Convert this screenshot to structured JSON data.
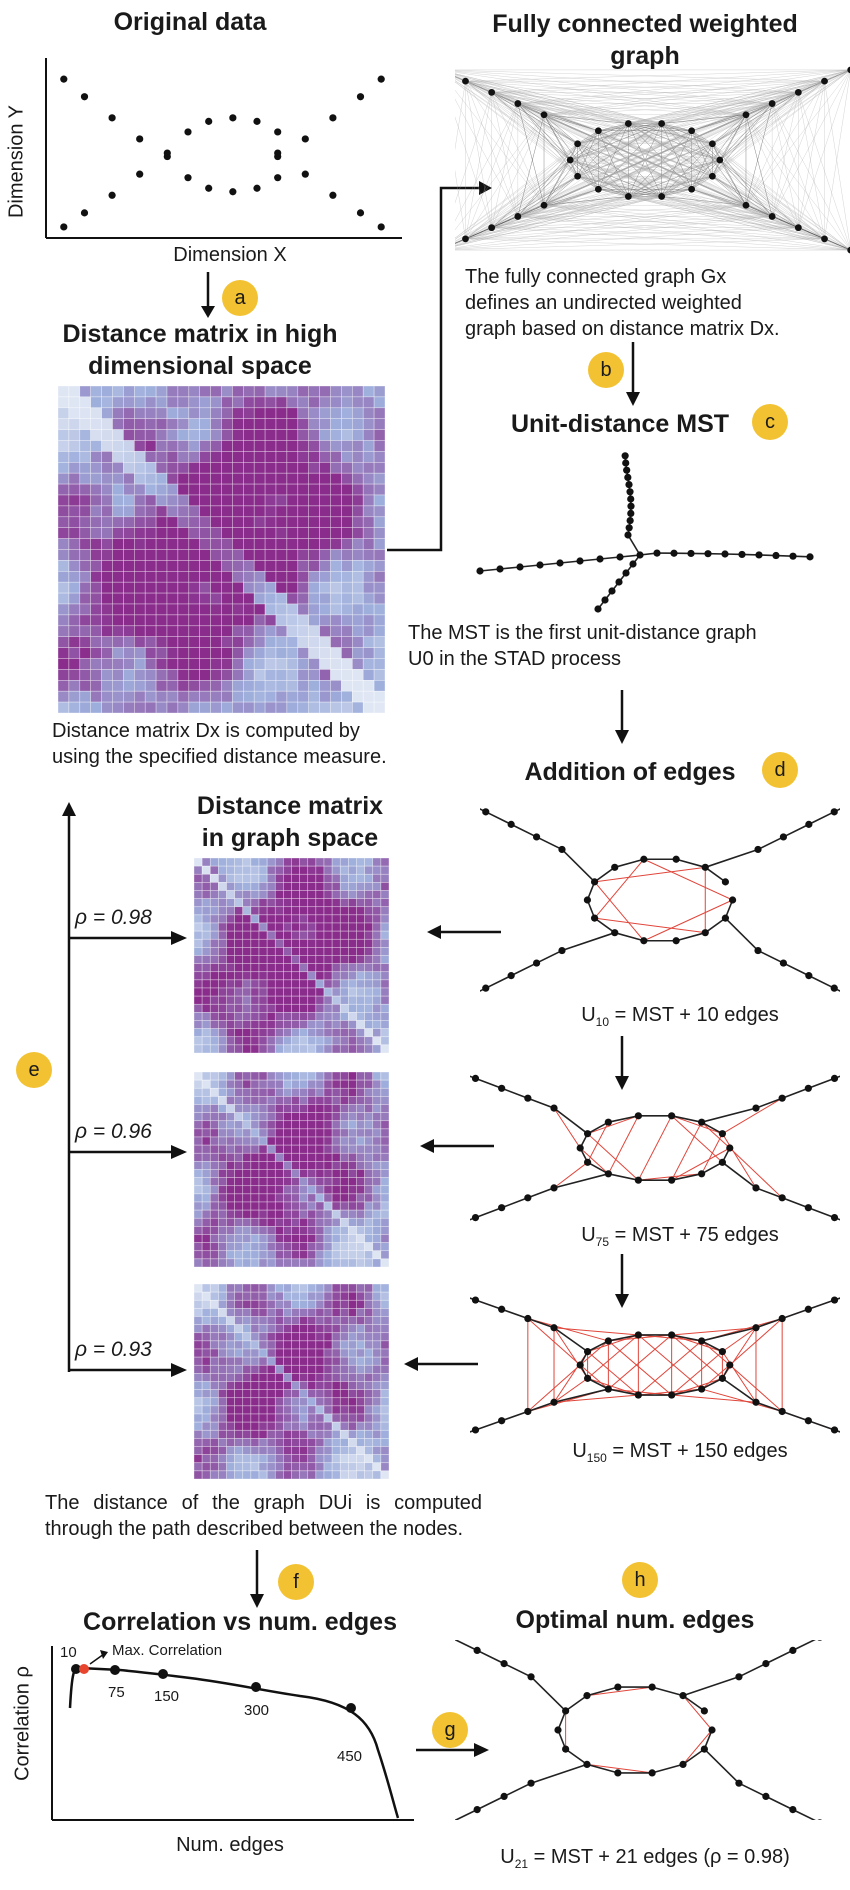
{
  "panel_original": {
    "title": "Original data",
    "ylabel": "Dimension Y",
    "xlabel": "Dimension X",
    "points": [
      [
        0.04,
        0.88
      ],
      [
        0.1,
        0.78
      ],
      [
        0.18,
        0.66
      ],
      [
        0.26,
        0.54
      ],
      [
        0.34,
        0.44
      ],
      [
        0.04,
        0.04
      ],
      [
        0.1,
        0.12
      ],
      [
        0.18,
        0.22
      ],
      [
        0.26,
        0.34
      ],
      [
        0.34,
        0.46
      ],
      [
        0.96,
        0.88
      ],
      [
        0.9,
        0.78
      ],
      [
        0.82,
        0.66
      ],
      [
        0.74,
        0.54
      ],
      [
        0.66,
        0.44
      ],
      [
        0.96,
        0.04
      ],
      [
        0.9,
        0.12
      ],
      [
        0.82,
        0.22
      ],
      [
        0.74,
        0.34
      ],
      [
        0.66,
        0.46
      ],
      [
        0.4,
        0.58
      ],
      [
        0.46,
        0.64
      ],
      [
        0.53,
        0.66
      ],
      [
        0.6,
        0.64
      ],
      [
        0.66,
        0.58
      ],
      [
        0.4,
        0.32
      ],
      [
        0.46,
        0.26
      ],
      [
        0.53,
        0.24
      ],
      [
        0.6,
        0.26
      ],
      [
        0.66,
        0.32
      ]
    ]
  },
  "badges": {
    "a": "a",
    "b": "b",
    "c": "c",
    "d": "d",
    "e": "e",
    "f": "f",
    "g": "g",
    "h": "h"
  },
  "panel_distance_high": {
    "title_line1": "Distance matrix in high",
    "title_line2": "dimensional space",
    "caption": "Distance matrix Dx is computed by using the specified distance measure."
  },
  "panel_graph": {
    "title_line1": "Fully connected weighted",
    "title_line2": "graph",
    "caption_line1": "The fully connected graph Gx",
    "caption_line2": "defines an undirected weighted",
    "caption_line3": "graph based on distance matrix Dx."
  },
  "panel_mst": {
    "title": "Unit-distance MST",
    "caption_line1": "The MST is the first unit-distance graph",
    "caption_line2": "U0 in the STAD process"
  },
  "panel_addition": {
    "title": "Addition of edges",
    "labels": [
      {
        "prefix": "U",
        "sub": "10",
        "rest": " = MST + 10 edges"
      },
      {
        "prefix": "U",
        "sub": "75",
        "rest": " = MST + 75 edges"
      },
      {
        "prefix": "U",
        "sub": "150",
        "rest": " = MST + 150 edges"
      }
    ]
  },
  "panel_graph_space": {
    "title_line1": "Distance matrix",
    "title_line2": "in graph space",
    "rhos": [
      "ρ = 0.98",
      "ρ = 0.96",
      "ρ = 0.93"
    ],
    "caption": "The distance of the graph DUi is computed through the path described between the nodes."
  },
  "panel_correlation": {
    "title": "Correlation vs num. edges",
    "ylabel": "Correlation ρ",
    "xlabel": "Num. edges",
    "annotation": "Max. Correlation",
    "point_labels": [
      "10",
      "75",
      "150",
      "300",
      "450"
    ]
  },
  "panel_optimal": {
    "title": "Optimal num. edges",
    "caption": "U21 = MST + 21 edges (ρ = 0.98)",
    "cap_prefix": "U",
    "cap_sub": "21",
    "cap_rest": " = MST + 21 edges (ρ = 0.98)"
  },
  "colors": {
    "badge": "#f2c232",
    "matrix_light": "#dfe6f3",
    "matrix_mid": "#9fb1d8",
    "matrix_dark": "#8a2c8c",
    "added_edge": "#e0453a",
    "max_point": "#e8452f"
  }
}
